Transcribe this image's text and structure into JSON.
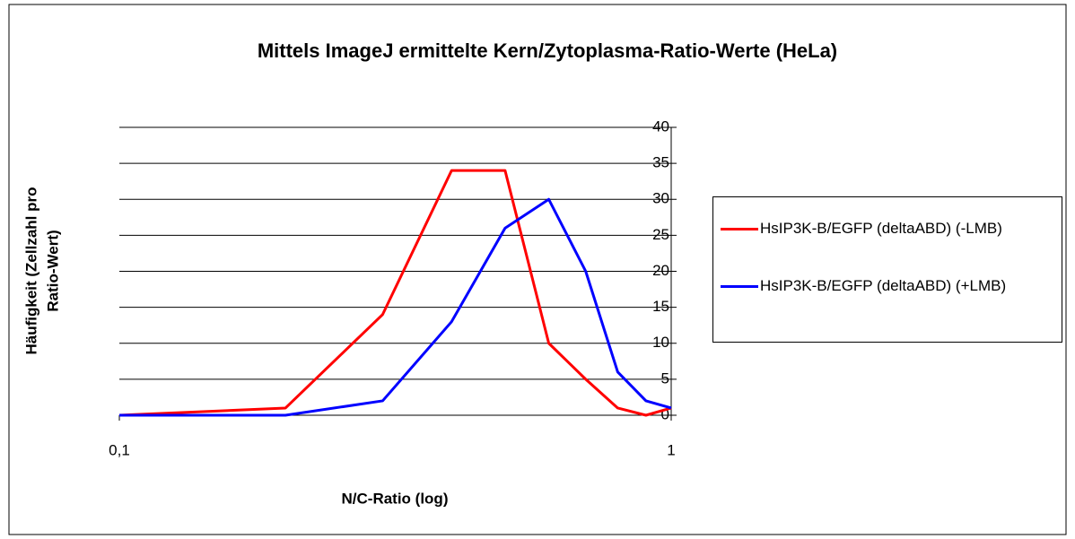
{
  "chart_data": {
    "type": "line",
    "title": "Mittels ImageJ ermittelte Kern/Zytoplasma-Ratio-Werte (HeLa)",
    "x_label": "N/C-Ratio (log)",
    "y_label": [
      "Häufigkeit (Zellzahl pro",
      "Ratio-Wert)"
    ],
    "x": [
      0.1,
      0.2,
      0.3,
      0.4,
      0.5,
      0.6,
      0.7,
      0.8,
      0.9,
      1.0
    ],
    "series": [
      {
        "name": "HsIP3K-B/EGFP (deltaABD) (-LMB)",
        "color": "#ff0000",
        "values": [
          0,
          1,
          14,
          34,
          34,
          10,
          5,
          1,
          0,
          1
        ]
      },
      {
        "name": "HsIP3K-B/EGFP (deltaABD) (+LMB)",
        "color": "#0000ff",
        "values": [
          0,
          0,
          2,
          13,
          26,
          30,
          20,
          6,
          2,
          1
        ]
      }
    ],
    "xlim": [
      0.1,
      1
    ],
    "xscale": "log",
    "xticks": [
      {
        "value": 0.1,
        "label": "0,1"
      },
      1
    ],
    "ylim": [
      0,
      40
    ],
    "yticks": [
      0,
      5,
      10,
      15,
      20,
      25,
      30,
      35,
      40
    ],
    "grid": true,
    "legend": "right"
  }
}
